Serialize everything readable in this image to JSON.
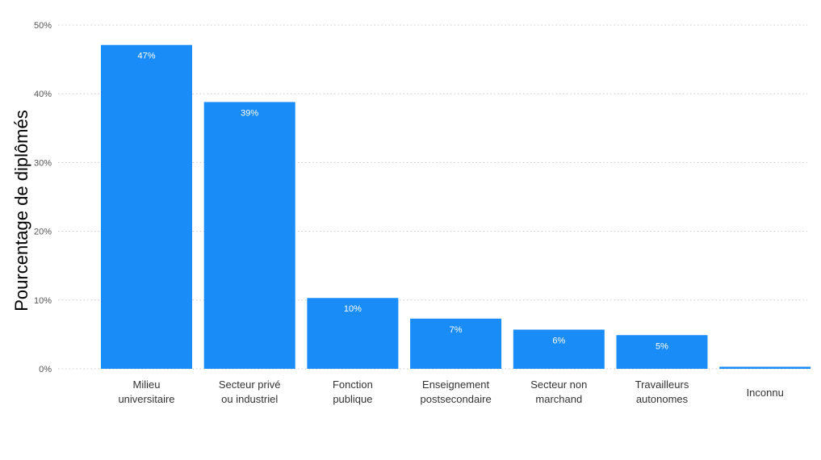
{
  "chart_data": {
    "type": "bar",
    "ylabel": "Pourcentage de diplômés",
    "xlabel": "",
    "ylim": [
      0,
      50
    ],
    "yticks": [
      "0%",
      "10%",
      "20%",
      "30%",
      "40%",
      "50%"
    ],
    "categories": [
      [
        "Milieu",
        "universitaire"
      ],
      [
        "Secteur privé",
        "ou industriel"
      ],
      [
        "Fonction",
        "publique"
      ],
      [
        "Enseignement",
        "postsecondaire"
      ],
      [
        "Secteur non",
        "marchand"
      ],
      [
        "Travailleurs",
        "autonomes"
      ],
      [
        "Inconnu"
      ]
    ],
    "values": [
      47.1,
      38.8,
      10.3,
      7.3,
      5.7,
      4.9,
      0.3
    ],
    "data_labels": [
      "47%",
      "39%",
      "10%",
      "7%",
      "6%",
      "5%",
      ""
    ],
    "bar_color": "#1a8cf7",
    "grid": true,
    "grid_style": "dotted"
  }
}
